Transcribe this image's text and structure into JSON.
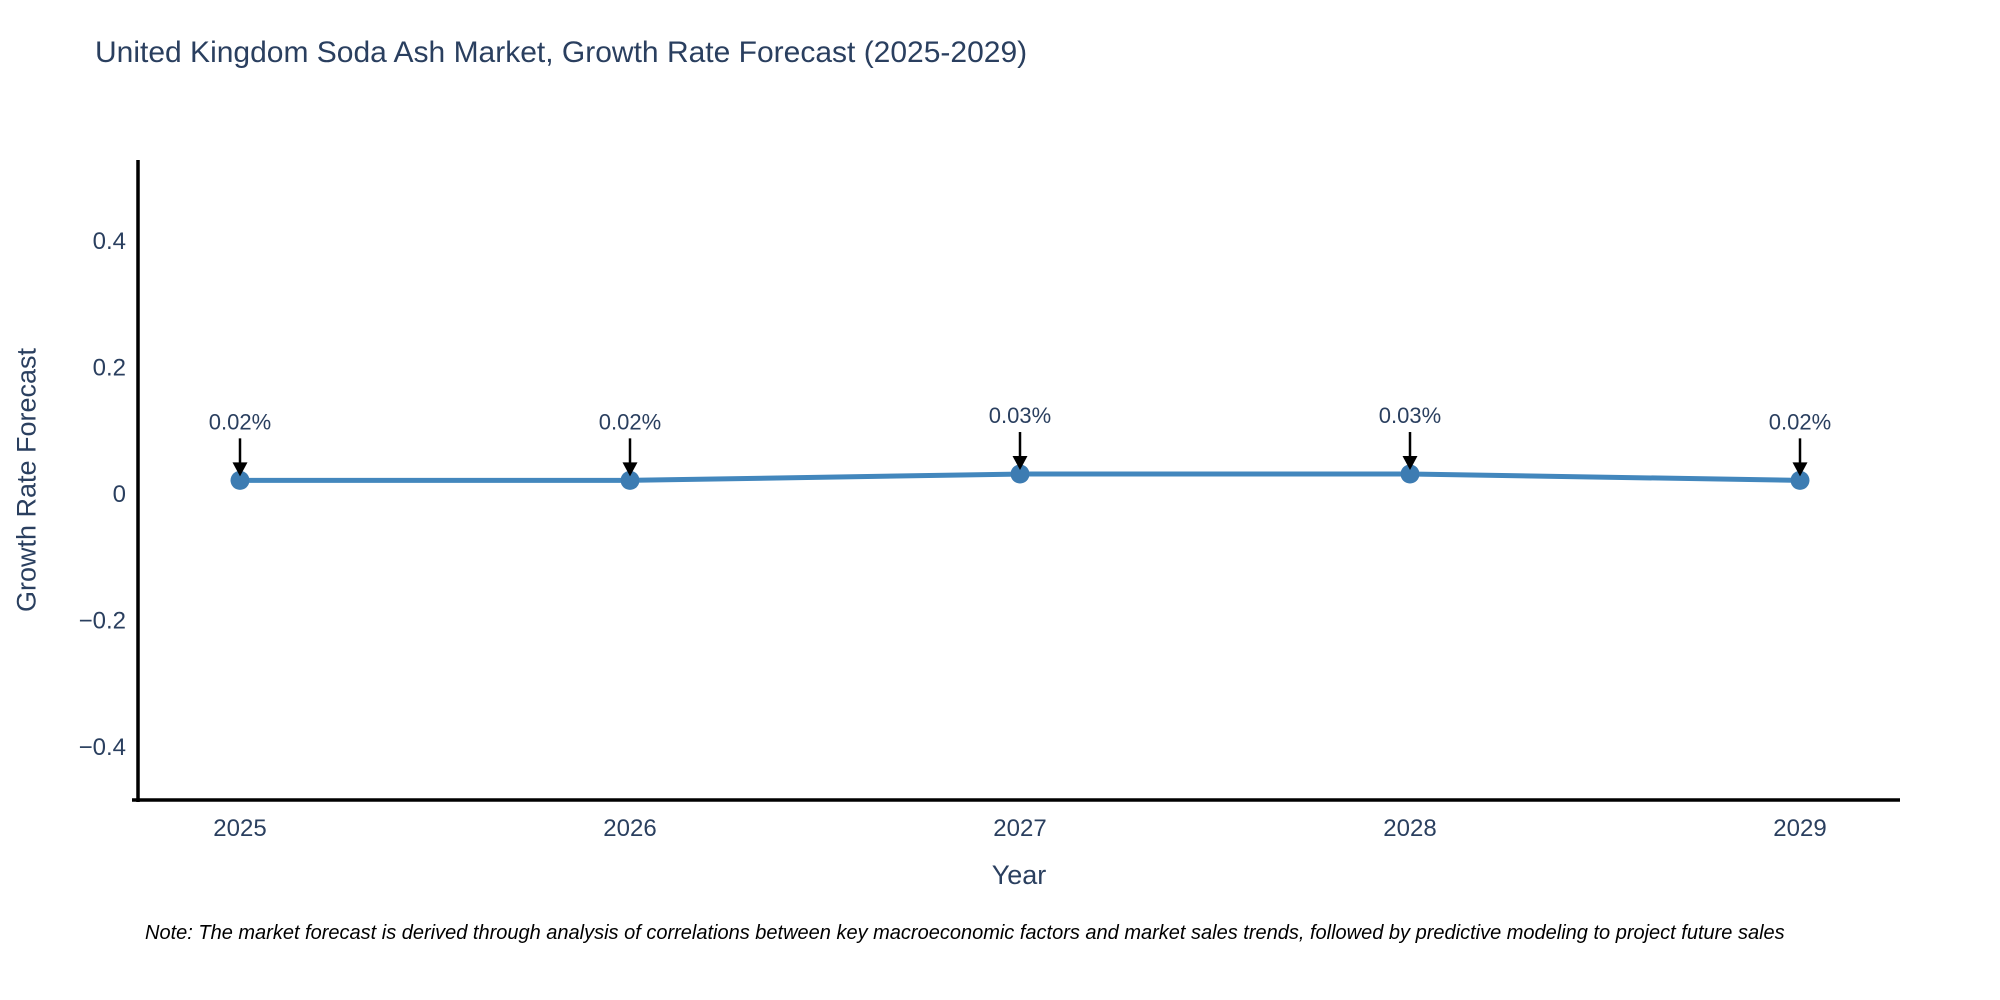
{
  "note": "Note: The market forecast is derived through analysis of correlations between key macroeconomic factors and market sales trends, followed by predictive modeling to project future sales",
  "chart_data": {
    "type": "line",
    "title": "United Kingdom Soda Ash Market, Growth Rate Forecast (2025-2029)",
    "xlabel": "Year",
    "ylabel": "Growth Rate Forecast",
    "categories": [
      "2025",
      "2026",
      "2027",
      "2028",
      "2029"
    ],
    "series": [
      {
        "name": "Growth Rate Forecast",
        "values": [
          0.02,
          0.02,
          0.03,
          0.03,
          0.02
        ]
      }
    ],
    "point_labels": [
      "0.02%",
      "0.02%",
      "0.03%",
      "0.03%",
      "0.02%"
    ],
    "yticks": [
      0.4,
      0.2,
      0,
      -0.2,
      -0.4
    ],
    "ytick_labels": [
      "0.4",
      "0.2",
      "0",
      "−0.2",
      "−0.4"
    ],
    "ylim": [
      -0.5,
      0.53
    ],
    "grid": false,
    "legend": "none",
    "colors": {
      "line": "#4387bd",
      "marker": "#3d7cb2",
      "axis": "#000000",
      "text": "#2a3f5f",
      "annotation": "#000000"
    }
  }
}
